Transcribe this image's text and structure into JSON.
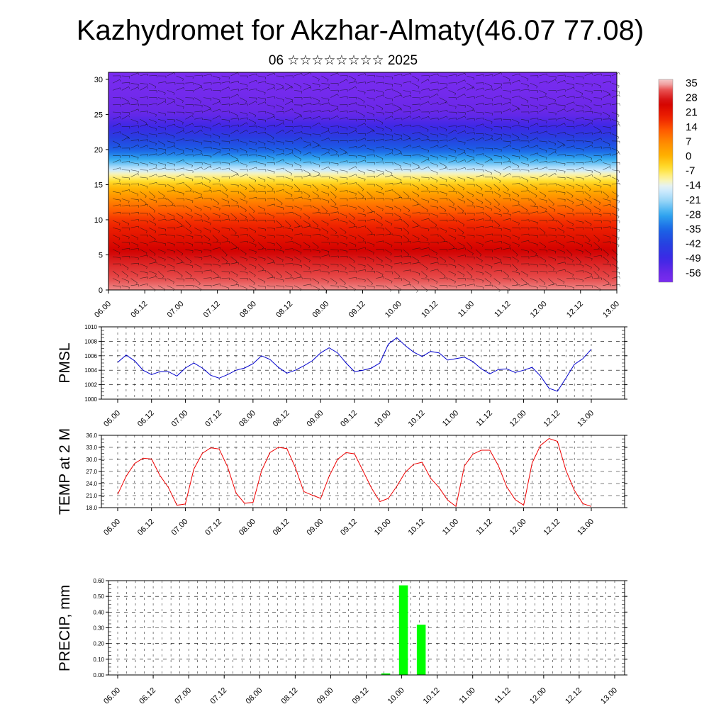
{
  "title": "Kazhydromet for Akzhar-Almaty(46.07 77.08)",
  "subtitle": "06 ☆☆☆☆☆☆☆☆ 2025",
  "x_ticks": [
    "06.00",
    "06.12",
    "07.00",
    "07.12",
    "08.00",
    "08.12",
    "09.00",
    "09.12",
    "10.00",
    "10.12",
    "11.00",
    "11.12",
    "12.00",
    "12.12",
    "13.00"
  ],
  "chart_data": [
    {
      "type": "heatmap",
      "title": "",
      "xlabel": "",
      "ylabel": "",
      "x": [
        "06.00",
        "06.12",
        "07.00",
        "07.12",
        "08.00",
        "08.12",
        "09.00",
        "09.12",
        "10.00",
        "10.12",
        "11.00",
        "11.12",
        "12.00",
        "12.12",
        "13.00"
      ],
      "y_ticks": [
        0,
        5,
        10,
        15,
        20,
        25,
        30
      ],
      "ylim": [
        0,
        31
      ],
      "colorbar_labels": [
        "35",
        "28",
        "21",
        "14",
        "7",
        "0",
        "-7",
        "-14",
        "-21",
        "-28",
        "-35",
        "-42",
        "-49",
        "-56"
      ],
      "colorbar_values": [
        35,
        28,
        21,
        14,
        7,
        0,
        -7,
        -14,
        -21,
        -28,
        -35,
        -42,
        -49,
        -56
      ],
      "temperature_profile": {
        "heights": [
          0,
          5,
          10,
          13,
          15,
          16.5,
          18,
          20,
          23,
          25,
          28,
          31
        ],
        "values": [
          33,
          26,
          16,
          6,
          -3,
          -12,
          -24,
          -36,
          -48,
          -55,
          -58,
          -60
        ]
      },
      "wind_barbs": true
    },
    {
      "type": "line",
      "ylabel": "PMSL",
      "ylim": [
        1000,
        1010
      ],
      "y_ticks": [
        "1000",
        "1002",
        "1004",
        "1006",
        "1008",
        "1010"
      ],
      "series": [
        {
          "color": "#0000cc",
          "values": [
            1005.1,
            1006.1,
            1005.3,
            1004.0,
            1003.4,
            1003.8,
            1003.8,
            1003.2,
            1004.3,
            1005.0,
            1004.3,
            1003.3,
            1002.9,
            1003.4,
            1004.0,
            1004.3,
            1004.9,
            1006.0,
            1005.5,
            1004.4,
            1003.6,
            1004.0,
            1004.6,
            1005.3,
            1006.4,
            1007.1,
            1006.4,
            1005.0,
            1003.8,
            1004.0,
            1004.3,
            1005.0,
            1007.6,
            1008.5,
            1007.4,
            1006.5,
            1005.9,
            1006.6,
            1006.4,
            1005.4,
            1005.6,
            1005.8,
            1005.2,
            1004.2,
            1003.5,
            1004.1,
            1004.2,
            1003.7,
            1004.0,
            1004.4,
            1003.2,
            1001.5,
            1001.1,
            1002.9,
            1004.8,
            1005.6,
            1006.9
          ]
        }
      ]
    },
    {
      "type": "line",
      "ylabel": "TEMP at 2 M",
      "ylim": [
        18,
        36
      ],
      "y_ticks": [
        "18.0",
        "21.0",
        "24.0",
        "27.0",
        "30.0",
        "33.0",
        "36.0"
      ],
      "series": [
        {
          "color": "#ee0000",
          "values": [
            21.3,
            25.8,
            29.0,
            30.3,
            30.1,
            26.0,
            23.0,
            18.6,
            18.9,
            27.6,
            31.5,
            32.9,
            32.6,
            28.1,
            21.6,
            19.1,
            19.3,
            27.1,
            31.7,
            33.0,
            32.7,
            28.0,
            22.0,
            21.1,
            20.3,
            25.8,
            30.0,
            31.7,
            31.4,
            27.2,
            22.9,
            19.5,
            20.3,
            23.3,
            26.8,
            28.8,
            29.3,
            25.3,
            23.0,
            19.9,
            18.3,
            28.4,
            31.3,
            32.3,
            32.3,
            28.5,
            23.2,
            20.0,
            18.6,
            29.1,
            33.5,
            35.2,
            34.5,
            27.3,
            22.3,
            19.0,
            18.3
          ]
        }
      ]
    },
    {
      "type": "bar",
      "ylabel": "PRECIP, mm",
      "ylim": [
        0,
        0.6
      ],
      "y_ticks": [
        "0.00",
        "0.10",
        "0.20",
        "0.30",
        "0.40",
        "0.50",
        "0.60"
      ],
      "color": "#00ff00",
      "bars": [
        {
          "time": "09.18",
          "value": 0.01
        },
        {
          "time": "10.00",
          "value": 0.57
        },
        {
          "time": "10.06",
          "value": 0.32
        }
      ]
    }
  ]
}
